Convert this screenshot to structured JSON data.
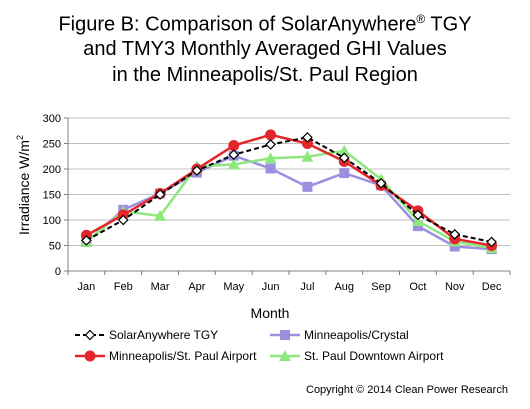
{
  "chart_data": {
    "type": "line",
    "title_lines": [
      "Figure B: Comparison of SolarAnywhere® TGY",
      "and TMY3 Monthly Averaged GHI Values",
      "in the Minneapolis/St. Paul Region"
    ],
    "title_parts": [
      "Figure B: Comparison of SolarAnywhere",
      "®",
      " TGY"
    ],
    "xlabel": "Month",
    "ylabel": "Irradiance W/m²",
    "ylabel_parts": [
      "Irradiance W/m",
      "2"
    ],
    "categories": [
      "Jan",
      "Feb",
      "Mar",
      "Apr",
      "May",
      "Jun",
      "Jul",
      "Aug",
      "Sep",
      "Oct",
      "Nov",
      "Dec"
    ],
    "ylim": [
      0,
      300
    ],
    "yticks": [
      0,
      50,
      100,
      150,
      200,
      250,
      300
    ],
    "grid": "horizontal",
    "legend_position": "bottom",
    "series": [
      {
        "name": "SolarAnywhere TGY",
        "color": "#000000",
        "dashed": true,
        "marker": "diamond-open",
        "values": [
          60,
          100,
          150,
          197,
          228,
          248,
          262,
          222,
          172,
          110,
          72,
          57
        ]
      },
      {
        "name": "Minneapolis/Crystal",
        "color": "#9b8fe0",
        "dashed": false,
        "marker": "square",
        "values": [
          57,
          120,
          152,
          193,
          226,
          201,
          165,
          192,
          168,
          88,
          48,
          43
        ]
      },
      {
        "name": "Minneapolis/St. Paul Airport",
        "color": "#e3262a",
        "dashed": false,
        "marker": "circle",
        "values": [
          70,
          110,
          152,
          200,
          246,
          267,
          250,
          215,
          168,
          118,
          63,
          50
        ]
      },
      {
        "name": "St. Paul Downtown Airport",
        "color": "#8ee87e",
        "dashed": false,
        "marker": "triangle",
        "values": [
          57,
          117,
          108,
          205,
          209,
          221,
          224,
          236,
          180,
          98,
          58,
          45
        ]
      }
    ]
  },
  "copyright": "Copyright © 2014 Clean Power Research"
}
